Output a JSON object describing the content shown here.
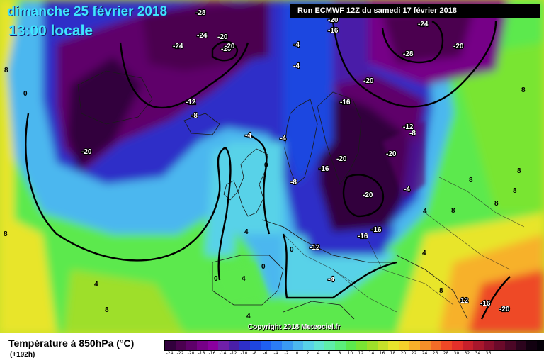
{
  "header": {
    "date_line": "dimanche 25 février 2018",
    "time_line": "13:00 locale",
    "run_info": "Run ECMWF 12Z du samedi 17 février 2018"
  },
  "copyright": "Copyright 2018 Meteociel.fr",
  "footer": {
    "variable_title": "Température à 850hPa (°C)",
    "lead_time": "(+192h)"
  },
  "legend": {
    "colors": [
      "#32003c",
      "#4b0050",
      "#5e006a",
      "#760087",
      "#8a009f",
      "#7020a8",
      "#4a1fa8",
      "#2e2fc8",
      "#1e46e0",
      "#1f5ff2",
      "#2b7cf5",
      "#3a9af3",
      "#4cb7ef",
      "#58d2e8",
      "#61e5d3",
      "#5fedaa",
      "#5bef7b",
      "#5ce94d",
      "#79e533",
      "#9edf2a",
      "#c6e02a",
      "#e8e52c",
      "#f5d12b",
      "#f7b12a",
      "#f68f29",
      "#f36c27",
      "#ee4826",
      "#e3302a",
      "#c7202b",
      "#a8172c",
      "#8a0f2c",
      "#6b0a2a",
      "#4c0726",
      "#2c041d",
      "#120110",
      "#050008"
    ],
    "labels": [
      "-24",
      "-22",
      "-20",
      "-18",
      "-16",
      "-14",
      "-12",
      "-10",
      "-8",
      "-6",
      "-4",
      "-2",
      "0",
      "2",
      "4",
      "6",
      "8",
      "10",
      "12",
      "14",
      "16",
      "18",
      "20",
      "22",
      "24",
      "26",
      "28",
      "30",
      "32",
      "34",
      "36"
    ]
  },
  "isotherm_labels": [
    "-28",
    "-24",
    "-20",
    "-20",
    "-24",
    "-20",
    "-4",
    "-4",
    "-12",
    "-8",
    "-4",
    "-20",
    "-16",
    "-20",
    "-24",
    "-28",
    "-20",
    "-16",
    "-12",
    "-8",
    "-20",
    "-20",
    "-16",
    "-20",
    "-8",
    "-16",
    "-16",
    "-12",
    "-4",
    "-4",
    "-4",
    "0",
    "0",
    "4",
    "0",
    "0",
    "4",
    "4",
    "4",
    "4",
    "8",
    "8",
    "8",
    "8",
    "8",
    "8",
    "8",
    "8",
    "12",
    "-16",
    "-20",
    "-20",
    "0",
    "8",
    "8",
    "4"
  ]
}
